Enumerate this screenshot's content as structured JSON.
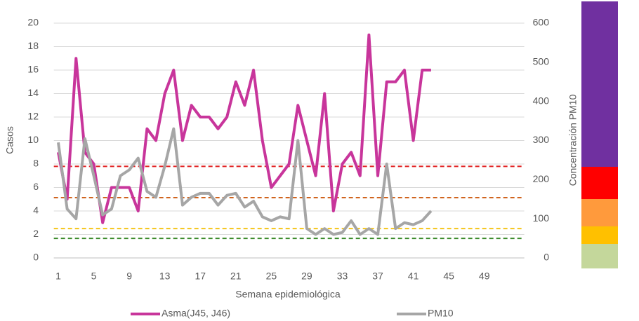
{
  "chart_data": {
    "type": "line",
    "xlabel": "Semana epidemiológica",
    "ylabel": "Casos",
    "y2label": "Concentración PM10",
    "categories": [
      1,
      null,
      null,
      null,
      5,
      null,
      null,
      null,
      9,
      null,
      null,
      null,
      13,
      null,
      null,
      null,
      17,
      null,
      null,
      null,
      21,
      null,
      null,
      null,
      25,
      null,
      null,
      null,
      29,
      null,
      null,
      null,
      33,
      null,
      null,
      null,
      37,
      null,
      null,
      null,
      41,
      null,
      null,
      null,
      45,
      null,
      null,
      null,
      49,
      null,
      null,
      null,
      null
    ],
    "series": [
      {
        "name": "Asma(J45, J46)",
        "color": "#c8359b",
        "axis": "y",
        "values": [
          9,
          5,
          17,
          9,
          8,
          3,
          6,
          6,
          6,
          4,
          11,
          10,
          14,
          16,
          10,
          13,
          12,
          12,
          11,
          12,
          15,
          13,
          16,
          10,
          6,
          7,
          8,
          13,
          10,
          7,
          14,
          4,
          8,
          9,
          7,
          19,
          7,
          15,
          15,
          16,
          10,
          16,
          16,
          null,
          null,
          null,
          null,
          null,
          null,
          null,
          null,
          null,
          null
        ]
      },
      {
        "name": "PM10",
        "color": "#a6a6a6",
        "axis": "y2",
        "values": [
          295,
          125,
          100,
          305,
          210,
          110,
          125,
          210,
          225,
          255,
          170,
          155,
          235,
          330,
          135,
          155,
          165,
          165,
          135,
          160,
          165,
          130,
          145,
          105,
          95,
          105,
          100,
          300,
          75,
          60,
          75,
          60,
          65,
          95,
          60,
          75,
          60,
          240,
          75,
          90,
          85,
          95,
          120,
          null,
          null,
          null,
          null,
          null,
          null,
          null,
          null,
          null,
          null
        ]
      }
    ],
    "thresholds": [
      {
        "value": 234,
        "color": "#e02020"
      },
      {
        "value": 154,
        "color": "#d0641e"
      },
      {
        "value": 75,
        "color": "#f5c518"
      },
      {
        "value": 50,
        "color": "#3a8a2a"
      }
    ],
    "ylim": [
      0,
      20
    ],
    "yticks": [
      0,
      2,
      4,
      6,
      8,
      10,
      12,
      14,
      16,
      18,
      20
    ],
    "y2lim": [
      0,
      600
    ],
    "y2ticks": [
      0,
      100,
      200,
      300,
      400,
      500,
      600
    ],
    "grid": true
  }
}
